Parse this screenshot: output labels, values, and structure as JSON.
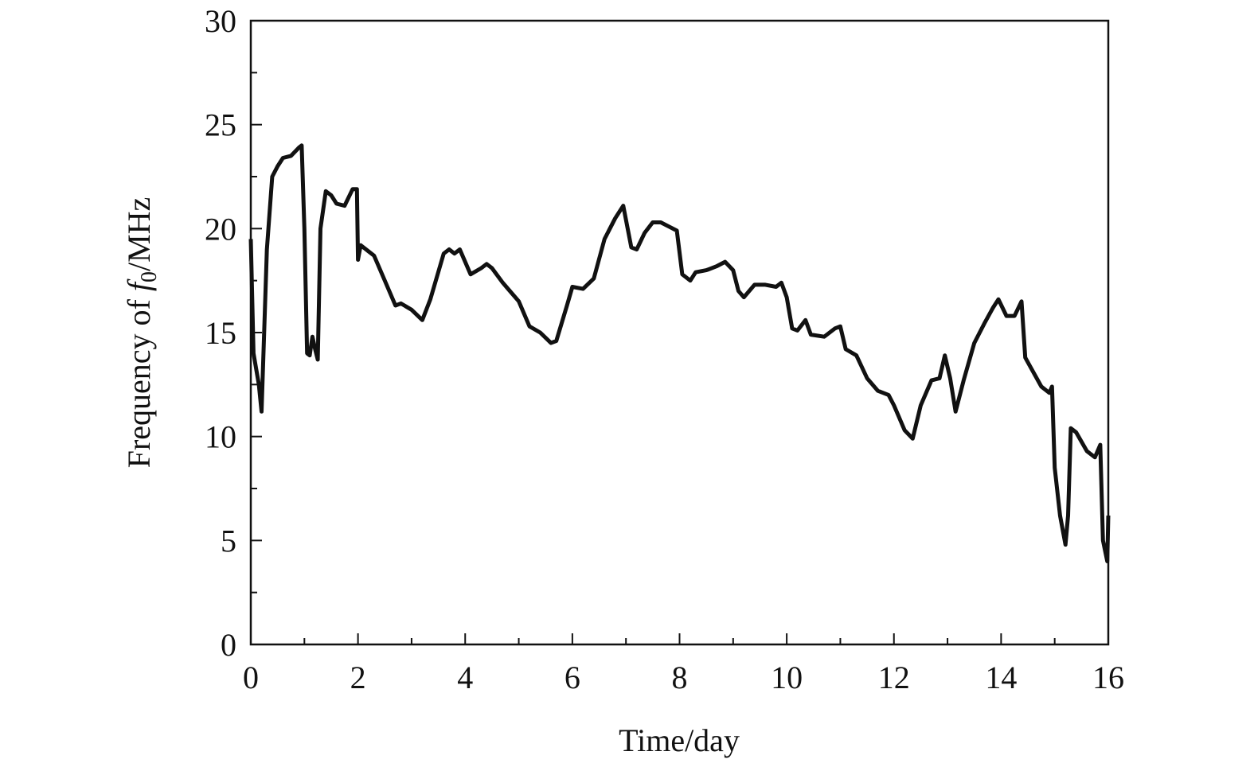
{
  "chart_data": {
    "type": "line",
    "xlabel": "Time/day",
    "ylabel": [
      "Frequency of ",
      "f",
      "0",
      "/MHz"
    ],
    "xlim": [
      0,
      16
    ],
    "ylim": [
      0,
      30
    ],
    "xticks": [
      0,
      2,
      4,
      6,
      8,
      10,
      12,
      14,
      16
    ],
    "yticks": [
      0,
      5,
      10,
      15,
      20,
      25,
      30
    ],
    "xminorticks": [
      1,
      3,
      5,
      7,
      9,
      11,
      13,
      15
    ],
    "yminorticks": [
      2.5,
      7.5,
      12.5,
      17.5,
      22.5,
      27.5
    ],
    "series": [
      {
        "color": "#111111",
        "x": [
          0,
          0.05,
          0.15,
          0.2,
          0.3,
          0.4,
          0.5,
          0.6,
          0.75,
          0.9,
          0.95,
          1.0,
          1.05,
          1.1,
          1.15,
          1.2,
          1.25,
          1.3,
          1.4,
          1.5,
          1.6,
          1.75,
          1.9,
          1.98,
          2.0,
          2.05,
          2.2,
          2.3,
          2.5,
          2.7,
          2.8,
          3.0,
          3.2,
          3.35,
          3.6,
          3.7,
          3.8,
          3.9,
          4.1,
          4.3,
          4.4,
          4.5,
          4.7,
          5.0,
          5.2,
          5.4,
          5.6,
          5.7,
          5.9,
          6.0,
          6.2,
          6.4,
          6.6,
          6.8,
          6.95,
          7.1,
          7.2,
          7.35,
          7.5,
          7.65,
          7.8,
          7.95,
          8.05,
          8.2,
          8.3,
          8.5,
          8.7,
          8.85,
          9.0,
          9.1,
          9.2,
          9.4,
          9.6,
          9.8,
          9.9,
          10.0,
          10.1,
          10.2,
          10.35,
          10.45,
          10.7,
          10.9,
          11.0,
          11.1,
          11.3,
          11.5,
          11.7,
          11.9,
          12.0,
          12.2,
          12.35,
          12.5,
          12.7,
          12.85,
          12.95,
          13.05,
          13.15,
          13.3,
          13.5,
          13.7,
          13.85,
          13.95,
          14.1,
          14.25,
          14.38,
          14.45,
          14.6,
          14.75,
          14.9,
          14.95,
          15.0,
          15.1,
          15.2,
          15.25,
          15.3,
          15.4,
          15.6,
          15.75,
          15.85,
          15.9,
          15.98,
          16
        ],
        "values": [
          19.5,
          14,
          12.5,
          11.2,
          19,
          22.5,
          23,
          23.4,
          23.5,
          23.9,
          24,
          20,
          14,
          13.9,
          14.8,
          14.2,
          13.7,
          20,
          21.8,
          21.6,
          21.2,
          21.1,
          21.9,
          21.9,
          18.5,
          19.2,
          18.9,
          18.7,
          17.5,
          16.3,
          16.4,
          16.1,
          15.6,
          16.6,
          18.8,
          19,
          18.8,
          19,
          17.8,
          18.1,
          18.3,
          18.1,
          17.4,
          16.5,
          15.3,
          15.0,
          14.5,
          14.6,
          16.3,
          17.2,
          17.1,
          17.6,
          19.5,
          20.5,
          21.1,
          19.1,
          19.0,
          19.8,
          20.3,
          20.3,
          20.1,
          19.9,
          17.8,
          17.5,
          17.9,
          18,
          18.2,
          18.4,
          18.0,
          17.0,
          16.7,
          17.3,
          17.3,
          17.2,
          17.4,
          16.7,
          15.2,
          15.1,
          15.6,
          14.9,
          14.8,
          15.2,
          15.3,
          14.2,
          13.9,
          12.8,
          12.2,
          12,
          11.5,
          10.3,
          9.9,
          11.5,
          12.7,
          12.8,
          13.9,
          12.8,
          11.2,
          12.7,
          14.5,
          15.5,
          16.2,
          16.6,
          15.8,
          15.8,
          16.5,
          13.8,
          13.1,
          12.4,
          12.1,
          12.4,
          8.5,
          6.2,
          4.8,
          6.2,
          10.4,
          10.2,
          9.3,
          9.0,
          9.6,
          5,
          4.0,
          6.2
        ]
      }
    ]
  }
}
